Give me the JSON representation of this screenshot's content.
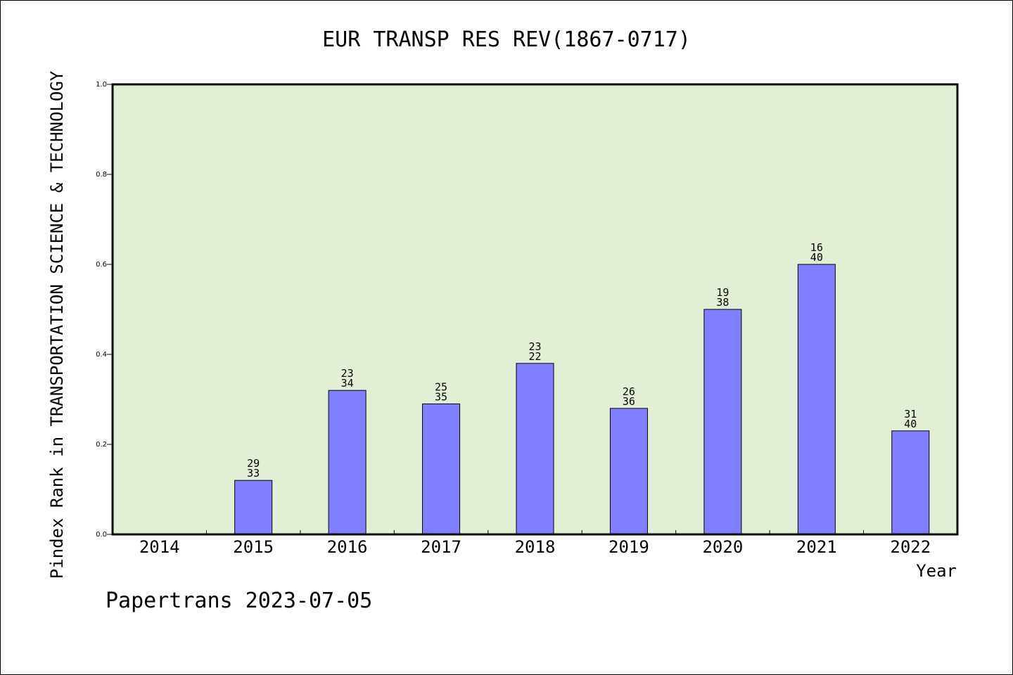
{
  "chart_data": {
    "type": "bar",
    "title": "EUR TRANSP RES REV(1867-0717)",
    "xlabel": "Year",
    "ylabel": "Pindex Rank in TRANSPORTATION SCIENCE & TECHNOLOGY",
    "categories": [
      "2014",
      "2015",
      "2016",
      "2017",
      "2018",
      "2019",
      "2020",
      "2021",
      "2022"
    ],
    "values": [
      null,
      0.12,
      0.32,
      0.29,
      0.38,
      0.28,
      0.5,
      0.6,
      0.23
    ],
    "labels_top": [
      "",
      "29",
      "23",
      "25",
      "23",
      "26",
      "19",
      "16",
      "31"
    ],
    "labels_bottom": [
      "",
      "33",
      "34",
      "35",
      "22",
      "36",
      "38",
      "40",
      "40"
    ],
    "ylim": [
      0,
      1.0
    ],
    "yticks": [
      "0.0",
      "0.2",
      "0.4",
      "0.6",
      "0.8",
      "1.0"
    ],
    "grid": false,
    "colors": {
      "plot_bg": "#e2efd5",
      "bar": "#8080ff",
      "bar_edge": "#000000"
    }
  },
  "footer": "Papertrans 2023-07-05"
}
